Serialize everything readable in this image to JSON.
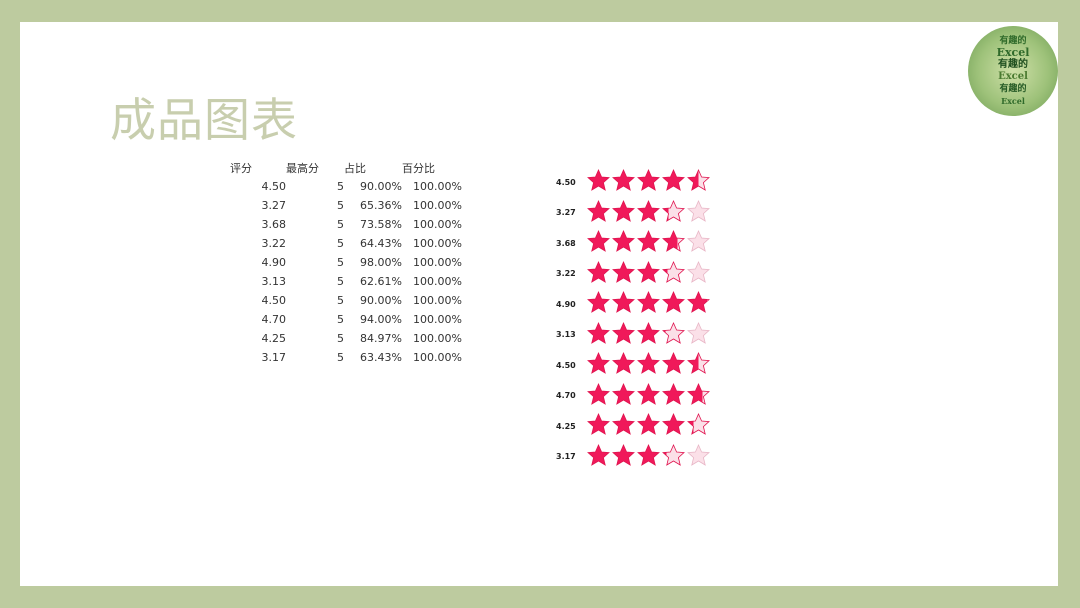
{
  "title": "成品图表",
  "logo": {
    "text": [
      "Excel",
      "有趣的",
      "Excel",
      "有趣的",
      "Excel",
      "有趣的"
    ]
  },
  "table": {
    "headers": [
      "评分",
      "最高分",
      "占比",
      "百分比"
    ],
    "rows": [
      [
        "4.50",
        "5",
        "90.00%",
        "100.00%"
      ],
      [
        "3.27",
        "5",
        "65.36%",
        "100.00%"
      ],
      [
        "3.68",
        "5",
        "73.58%",
        "100.00%"
      ],
      [
        "3.22",
        "5",
        "64.43%",
        "100.00%"
      ],
      [
        "4.90",
        "5",
        "98.00%",
        "100.00%"
      ],
      [
        "3.13",
        "5",
        "62.61%",
        "100.00%"
      ],
      [
        "4.50",
        "5",
        "90.00%",
        "100.00%"
      ],
      [
        "4.70",
        "5",
        "94.00%",
        "100.00%"
      ],
      [
        "4.25",
        "5",
        "84.97%",
        "100.00%"
      ],
      [
        "3.17",
        "5",
        "63.43%",
        "100.00%"
      ]
    ]
  },
  "stars": {
    "max": 5,
    "fill_color": "#f0195a",
    "empty_color": "#fbe0e8",
    "ratings": [
      "4.50",
      "3.27",
      "3.68",
      "3.22",
      "4.90",
      "3.13",
      "4.50",
      "4.70",
      "4.25",
      "3.17"
    ]
  }
}
